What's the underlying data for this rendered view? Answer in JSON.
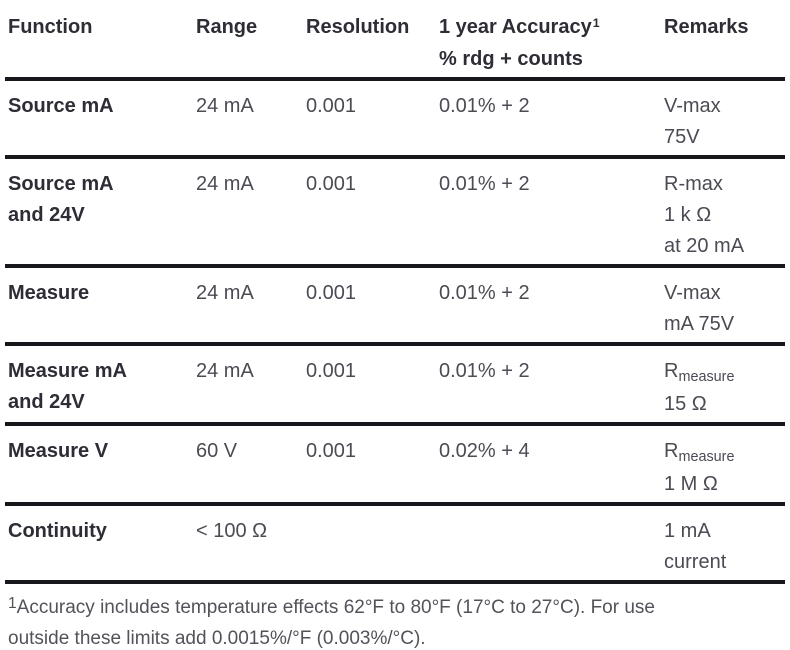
{
  "colors": {
    "rule": "#17171c",
    "header_text": "#2d2d36",
    "body_text": "#4b4b54",
    "footnote_text": "#52525a",
    "background": "#ffffff"
  },
  "table": {
    "header": {
      "function": "Function",
      "range": "Range",
      "resolution": "Resolution",
      "accuracy_line1": "1 year Accuracy",
      "accuracy_footnote_marker": "1",
      "accuracy_line2": "% rdg + counts",
      "remarks": "Remarks"
    },
    "rows": [
      {
        "function_lines": [
          "Source mA"
        ],
        "range": "24 mA",
        "resolution": "0.001",
        "accuracy": "0.01% + 2",
        "remark_lines": [
          [
            {
              "t": "V-max"
            }
          ],
          [
            {
              "t": "75V"
            }
          ]
        ]
      },
      {
        "function_lines": [
          "Source mA",
          "and 24V"
        ],
        "range": "24 mA",
        "resolution": "0.001",
        "accuracy": "0.01% + 2",
        "remark_lines": [
          [
            {
              "t": "R-max"
            }
          ],
          [
            {
              "t": "1 k Ω"
            }
          ],
          [
            {
              "t": "at 20 mA"
            }
          ]
        ]
      },
      {
        "function_lines": [
          "Measure"
        ],
        "range": "24 mA",
        "resolution": "0.001",
        "accuracy": "0.01% + 2",
        "remark_lines": [
          [
            {
              "t": "V-max"
            }
          ],
          [
            {
              "t": "mA 75V"
            }
          ]
        ]
      },
      {
        "function_lines": [
          "Measure mA",
          "and 24V"
        ],
        "range": "24 mA",
        "resolution": "0.001",
        "accuracy": "0.01% + 2",
        "remark_lines": [
          [
            {
              "t": "R"
            },
            {
              "t": "measure",
              "sub": true
            }
          ],
          [
            {
              "t": "15 Ω"
            }
          ]
        ]
      },
      {
        "function_lines": [
          "Measure V"
        ],
        "range": "60 V",
        "resolution": "0.001",
        "accuracy": "0.02% + 4",
        "remark_lines": [
          [
            {
              "t": "R"
            },
            {
              "t": "measure",
              "sub": true
            }
          ],
          [
            {
              "t": "1 M Ω"
            }
          ]
        ]
      },
      {
        "function_lines": [
          "Continuity"
        ],
        "range": "< 100 Ω",
        "resolution": "",
        "accuracy": "",
        "remark_lines": [
          [
            {
              "t": "1 mA"
            }
          ],
          [
            {
              "t": "current"
            }
          ]
        ]
      }
    ],
    "footnote": {
      "marker": "1",
      "line1": "Accuracy includes temperature effects 62°F to 80°F (17°C to 27°C). For use",
      "line2": "outside these limits add 0.0015%/°F (0.003%/°C)."
    }
  }
}
